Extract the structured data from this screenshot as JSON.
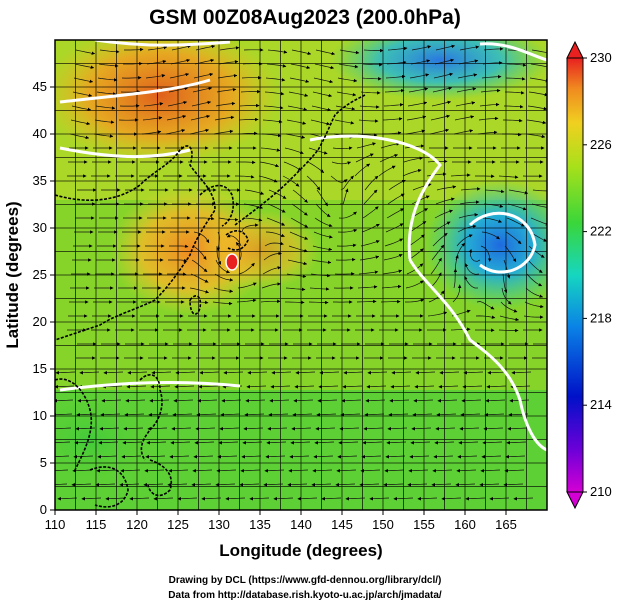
{
  "title": "GSM 00Z08Aug2023 (200.0hPa)",
  "x_label": "Longitude (degrees)",
  "y_label": "Latitude  (degrees)",
  "x_ticks": [
    "110",
    "115",
    "120",
    "125",
    "130",
    "135",
    "140",
    "145",
    "150",
    "155",
    "160",
    "165"
  ],
  "y_ticks": [
    "0",
    "5",
    "10",
    "15",
    "20",
    "25",
    "30",
    "35",
    "40",
    "45"
  ],
  "colorbar_ticks": [
    "230",
    "226",
    "222",
    "218",
    "214",
    "210"
  ],
  "credits": [
    "Drawing by DCL (https://www.gfd-dennou.org/library/dcl/)",
    "Data from http://database.rish.kyoto-u.ac.jp/arch/jmadata/"
  ],
  "map": {
    "lon_range": [
      110,
      170
    ],
    "lat_range": [
      0,
      50
    ],
    "colorbar_range": [
      210,
      230
    ],
    "colors": {
      "warm": "#e8741f",
      "mid": "#7ed321",
      "cool": "#1f7fe0",
      "contour": "#ffffff",
      "coast": "#000000"
    }
  }
}
